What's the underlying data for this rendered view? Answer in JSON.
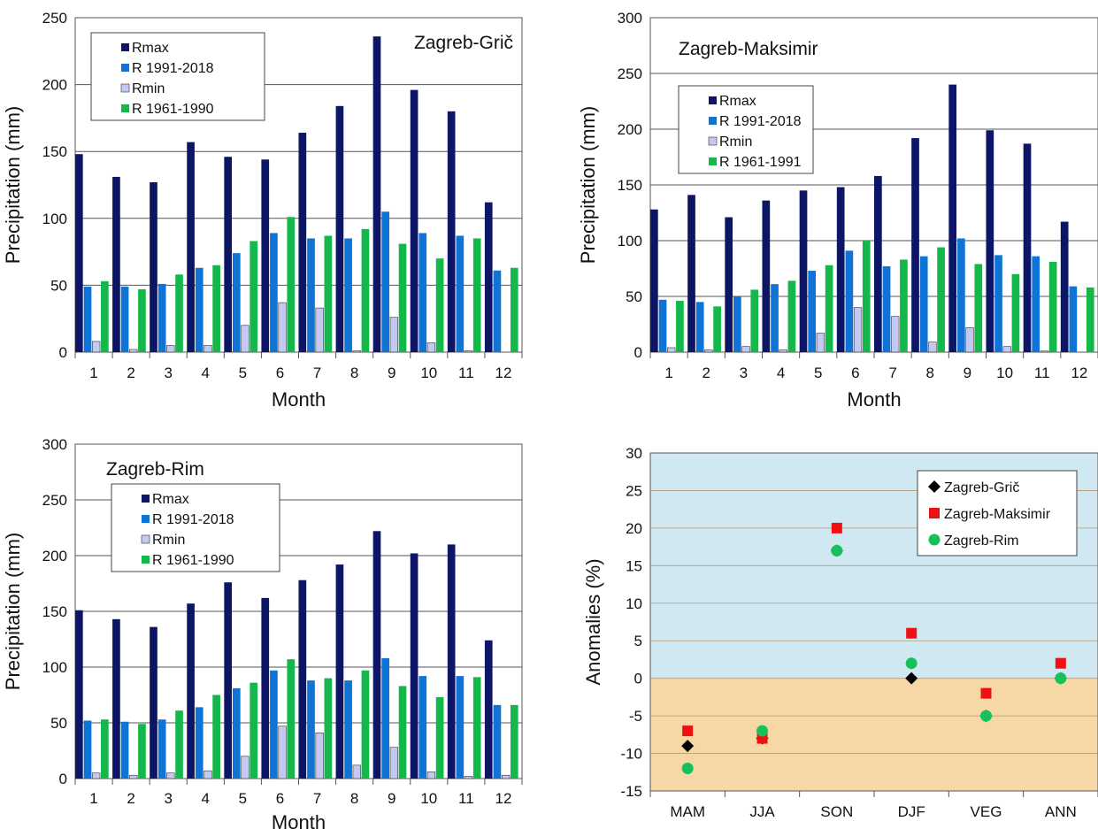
{
  "colors": {
    "rmax": "#0d1566",
    "r_recent": "#0f74d6",
    "rmin": "#c4c9f2",
    "r_old": "#14b84a",
    "positive_bg": "#cfe8f2",
    "negative_bg": "#f5d8a6",
    "gric": "#000000",
    "maksimir": "#ee1111",
    "rim": "#16c05a"
  },
  "chart_data": [
    {
      "type": "bar",
      "title": "Zagreb-Grič",
      "xlabel": "Month",
      "ylabel": "Precipitation  (mm)",
      "ylim": [
        0,
        250
      ],
      "yticks": [
        0,
        50,
        100,
        150,
        200,
        250
      ],
      "categories": [
        "1",
        "2",
        "3",
        "4",
        "5",
        "6",
        "7",
        "8",
        "9",
        "10",
        "11",
        "12"
      ],
      "legend_position": "top-left",
      "series": [
        {
          "name": "Rmax",
          "color_key": "rmax",
          "values": [
            148,
            131,
            127,
            157,
            146,
            144,
            164,
            184,
            236,
            196,
            180,
            112
          ]
        },
        {
          "name": "R 1991-2018",
          "color_key": "r_recent",
          "values": [
            49,
            49,
            51,
            63,
            74,
            89,
            85,
            85,
            105,
            89,
            87,
            61
          ]
        },
        {
          "name": "Rmin",
          "color_key": "rmin",
          "values": [
            8,
            2,
            5,
            5,
            20,
            37,
            33,
            1,
            26,
            7,
            1,
            0
          ]
        },
        {
          "name": "R 1961-1990",
          "color_key": "r_old",
          "values": [
            53,
            47,
            58,
            65,
            83,
            101,
            87,
            92,
            81,
            70,
            85,
            63
          ]
        }
      ]
    },
    {
      "type": "bar",
      "title": "Zagreb-Maksimir",
      "xlabel": "Month",
      "ylabel": "Precipitation  (mm)",
      "ylim": [
        0,
        300
      ],
      "yticks": [
        0,
        50,
        100,
        150,
        200,
        250,
        300
      ],
      "categories": [
        "1",
        "2",
        "3",
        "4",
        "5",
        "6",
        "7",
        "8",
        "9",
        "10",
        "11",
        "12"
      ],
      "legend_position": "top-left",
      "series": [
        {
          "name": "Rmax",
          "color_key": "rmax",
          "values": [
            128,
            141,
            121,
            136,
            145,
            148,
            158,
            192,
            240,
            199,
            187,
            117
          ]
        },
        {
          "name": "R 1991-2018",
          "color_key": "r_recent",
          "values": [
            47,
            45,
            50,
            61,
            73,
            91,
            77,
            86,
            102,
            87,
            86,
            59
          ]
        },
        {
          "name": "Rmin",
          "color_key": "rmin",
          "values": [
            4,
            2,
            5,
            2,
            17,
            40,
            32,
            9,
            22,
            5,
            1,
            0
          ]
        },
        {
          "name": "R 1961-1991",
          "color_key": "r_old",
          "values": [
            46,
            41,
            56,
            64,
            78,
            100,
            83,
            94,
            79,
            70,
            81,
            58
          ]
        }
      ]
    },
    {
      "type": "bar",
      "title": "Zagreb-Rim",
      "xlabel": "Month",
      "ylabel": "Precipitation  (mm)",
      "ylim": [
        0,
        300
      ],
      "yticks": [
        0,
        50,
        100,
        150,
        200,
        250,
        300
      ],
      "categories": [
        "1",
        "2",
        "3",
        "4",
        "5",
        "6",
        "7",
        "8",
        "9",
        "10",
        "11",
        "12"
      ],
      "legend_position": "top-left",
      "series": [
        {
          "name": "Rmax",
          "color_key": "rmax",
          "values": [
            151,
            143,
            136,
            157,
            176,
            162,
            178,
            192,
            222,
            202,
            210,
            124
          ]
        },
        {
          "name": "R 1991-2018",
          "color_key": "r_recent",
          "values": [
            52,
            51,
            53,
            64,
            81,
            97,
            88,
            88,
            108,
            92,
            92,
            66
          ]
        },
        {
          "name": "Rmin",
          "color_key": "rmin",
          "values": [
            5,
            3,
            5,
            7,
            20,
            47,
            41,
            12,
            28,
            6,
            2,
            3
          ]
        },
        {
          "name": "R 1961-1990",
          "color_key": "r_old",
          "values": [
            53,
            49,
            61,
            75,
            86,
            107,
            90,
            97,
            83,
            73,
            91,
            66
          ]
        }
      ]
    },
    {
      "type": "scatter",
      "title": "",
      "xlabel": "",
      "ylabel": "Anomalies  (%)",
      "ylim": [
        -15,
        30
      ],
      "yticks": [
        -15,
        -10,
        -5,
        0,
        5,
        10,
        15,
        20,
        25,
        30
      ],
      "categories": [
        "MAM",
        "JJA",
        "SON",
        "DJF",
        "VEG",
        "ANN"
      ],
      "legend_position": "top-right",
      "series": [
        {
          "name": "Zagreb-Grič",
          "color_key": "gric",
          "marker": "diamond",
          "values": [
            -9,
            -8,
            17,
            0,
            -5,
            0
          ]
        },
        {
          "name": "Zagreb-Maksimir",
          "color_key": "maksimir",
          "marker": "square",
          "values": [
            -7,
            -8,
            20,
            6,
            -2,
            2
          ]
        },
        {
          "name": "Zagreb-Rim",
          "color_key": "rim",
          "marker": "circle",
          "values": [
            -12,
            -7,
            17,
            2,
            -5,
            0
          ]
        }
      ]
    }
  ]
}
